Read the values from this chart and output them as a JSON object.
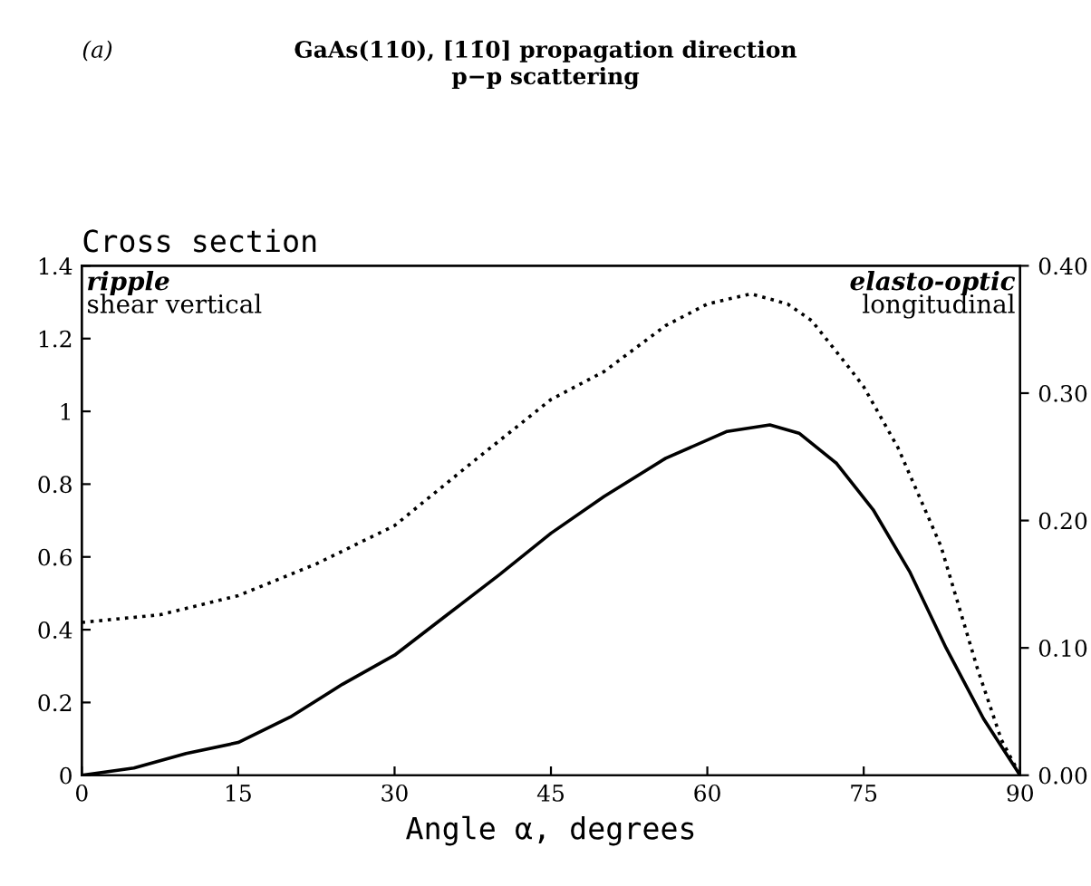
{
  "chart_data": {
    "type": "line",
    "title": "GaAs(110), [11̄0] propagation direction",
    "subtitle": "p−p scattering",
    "xlabel": "Angle α, degrees",
    "ylabel": "Cross section",
    "annotations": [
      "(a)",
      "ripple",
      "shear vertical",
      "elasto-optic",
      "longitudinal"
    ],
    "series": [
      {
        "color": "#000000",
        "line_style": "solid",
        "x": [
          0,
          5,
          10,
          15,
          20,
          25,
          30,
          35,
          40,
          45,
          50.1,
          56,
          61.9,
          66,
          68.8,
          72.4,
          75.9,
          79.4,
          82.9,
          86.5,
          90
        ],
        "values": [
          0,
          0.02,
          0.06,
          0.09,
          0.16,
          0.25,
          0.33,
          0.44,
          0.55,
          0.665,
          0.766,
          0.871,
          0.945,
          0.963,
          0.94,
          0.857,
          0.73,
          0.56,
          0.35,
          0.155,
          0
        ]
      },
      {
        "color": "#000000",
        "line_style": "dotted",
        "axis": "y2",
        "x": [
          0,
          7.5,
          15,
          22.5,
          30,
          37.5,
          45,
          50.1,
          56,
          60,
          64.2,
          67.7,
          70,
          73.6,
          75,
          78.3,
          82.4,
          85.9,
          88.2,
          90
        ],
        "values": [
          0.12,
          0.126,
          0.141,
          0.166,
          0.196,
          0.246,
          0.295,
          0.317,
          0.353,
          0.37,
          0.378,
          0.37,
          0.357,
          0.32,
          0.305,
          0.257,
          0.18,
          0.084,
          0.028,
          0
        ]
      }
    ],
    "xlim": [
      0,
      90
    ],
    "xticks": [
      0,
      15,
      30,
      45,
      60,
      75,
      90
    ],
    "ylim": [
      0,
      1.4
    ],
    "yticks": [
      0,
      0.2,
      0.4,
      0.6,
      0.8,
      1,
      1.2,
      1.4
    ],
    "y2lim": [
      0,
      0.4
    ],
    "y2ticks": [
      {
        "value": 0,
        "label": "0.00"
      },
      {
        "value": 0.1,
        "label": "0.10"
      },
      {
        "value": 0.2,
        "label": "0.20"
      },
      {
        "value": 0.3,
        "label": "0.30"
      },
      {
        "value": 0.4,
        "label": "0.40"
      }
    ],
    "grid": false,
    "legend": false
  }
}
